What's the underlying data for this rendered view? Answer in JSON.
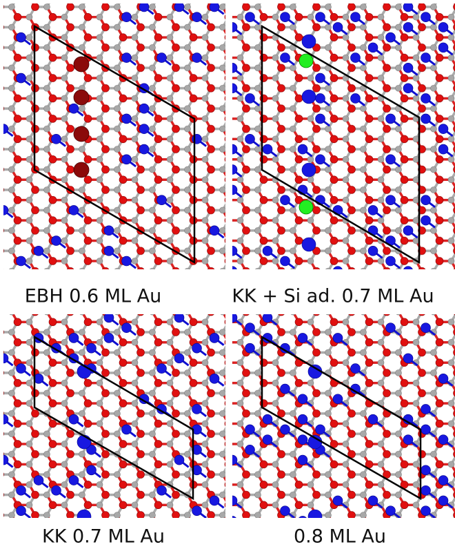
{
  "panels": [
    {
      "label": "EBH 0.6 ML Au"
    },
    {
      "label": "KK + Si ad. 0.7 ML Au"
    },
    {
      "label": "KK 0.7 ML Au"
    },
    {
      "label": "0.8 ML Au"
    }
  ]
}
